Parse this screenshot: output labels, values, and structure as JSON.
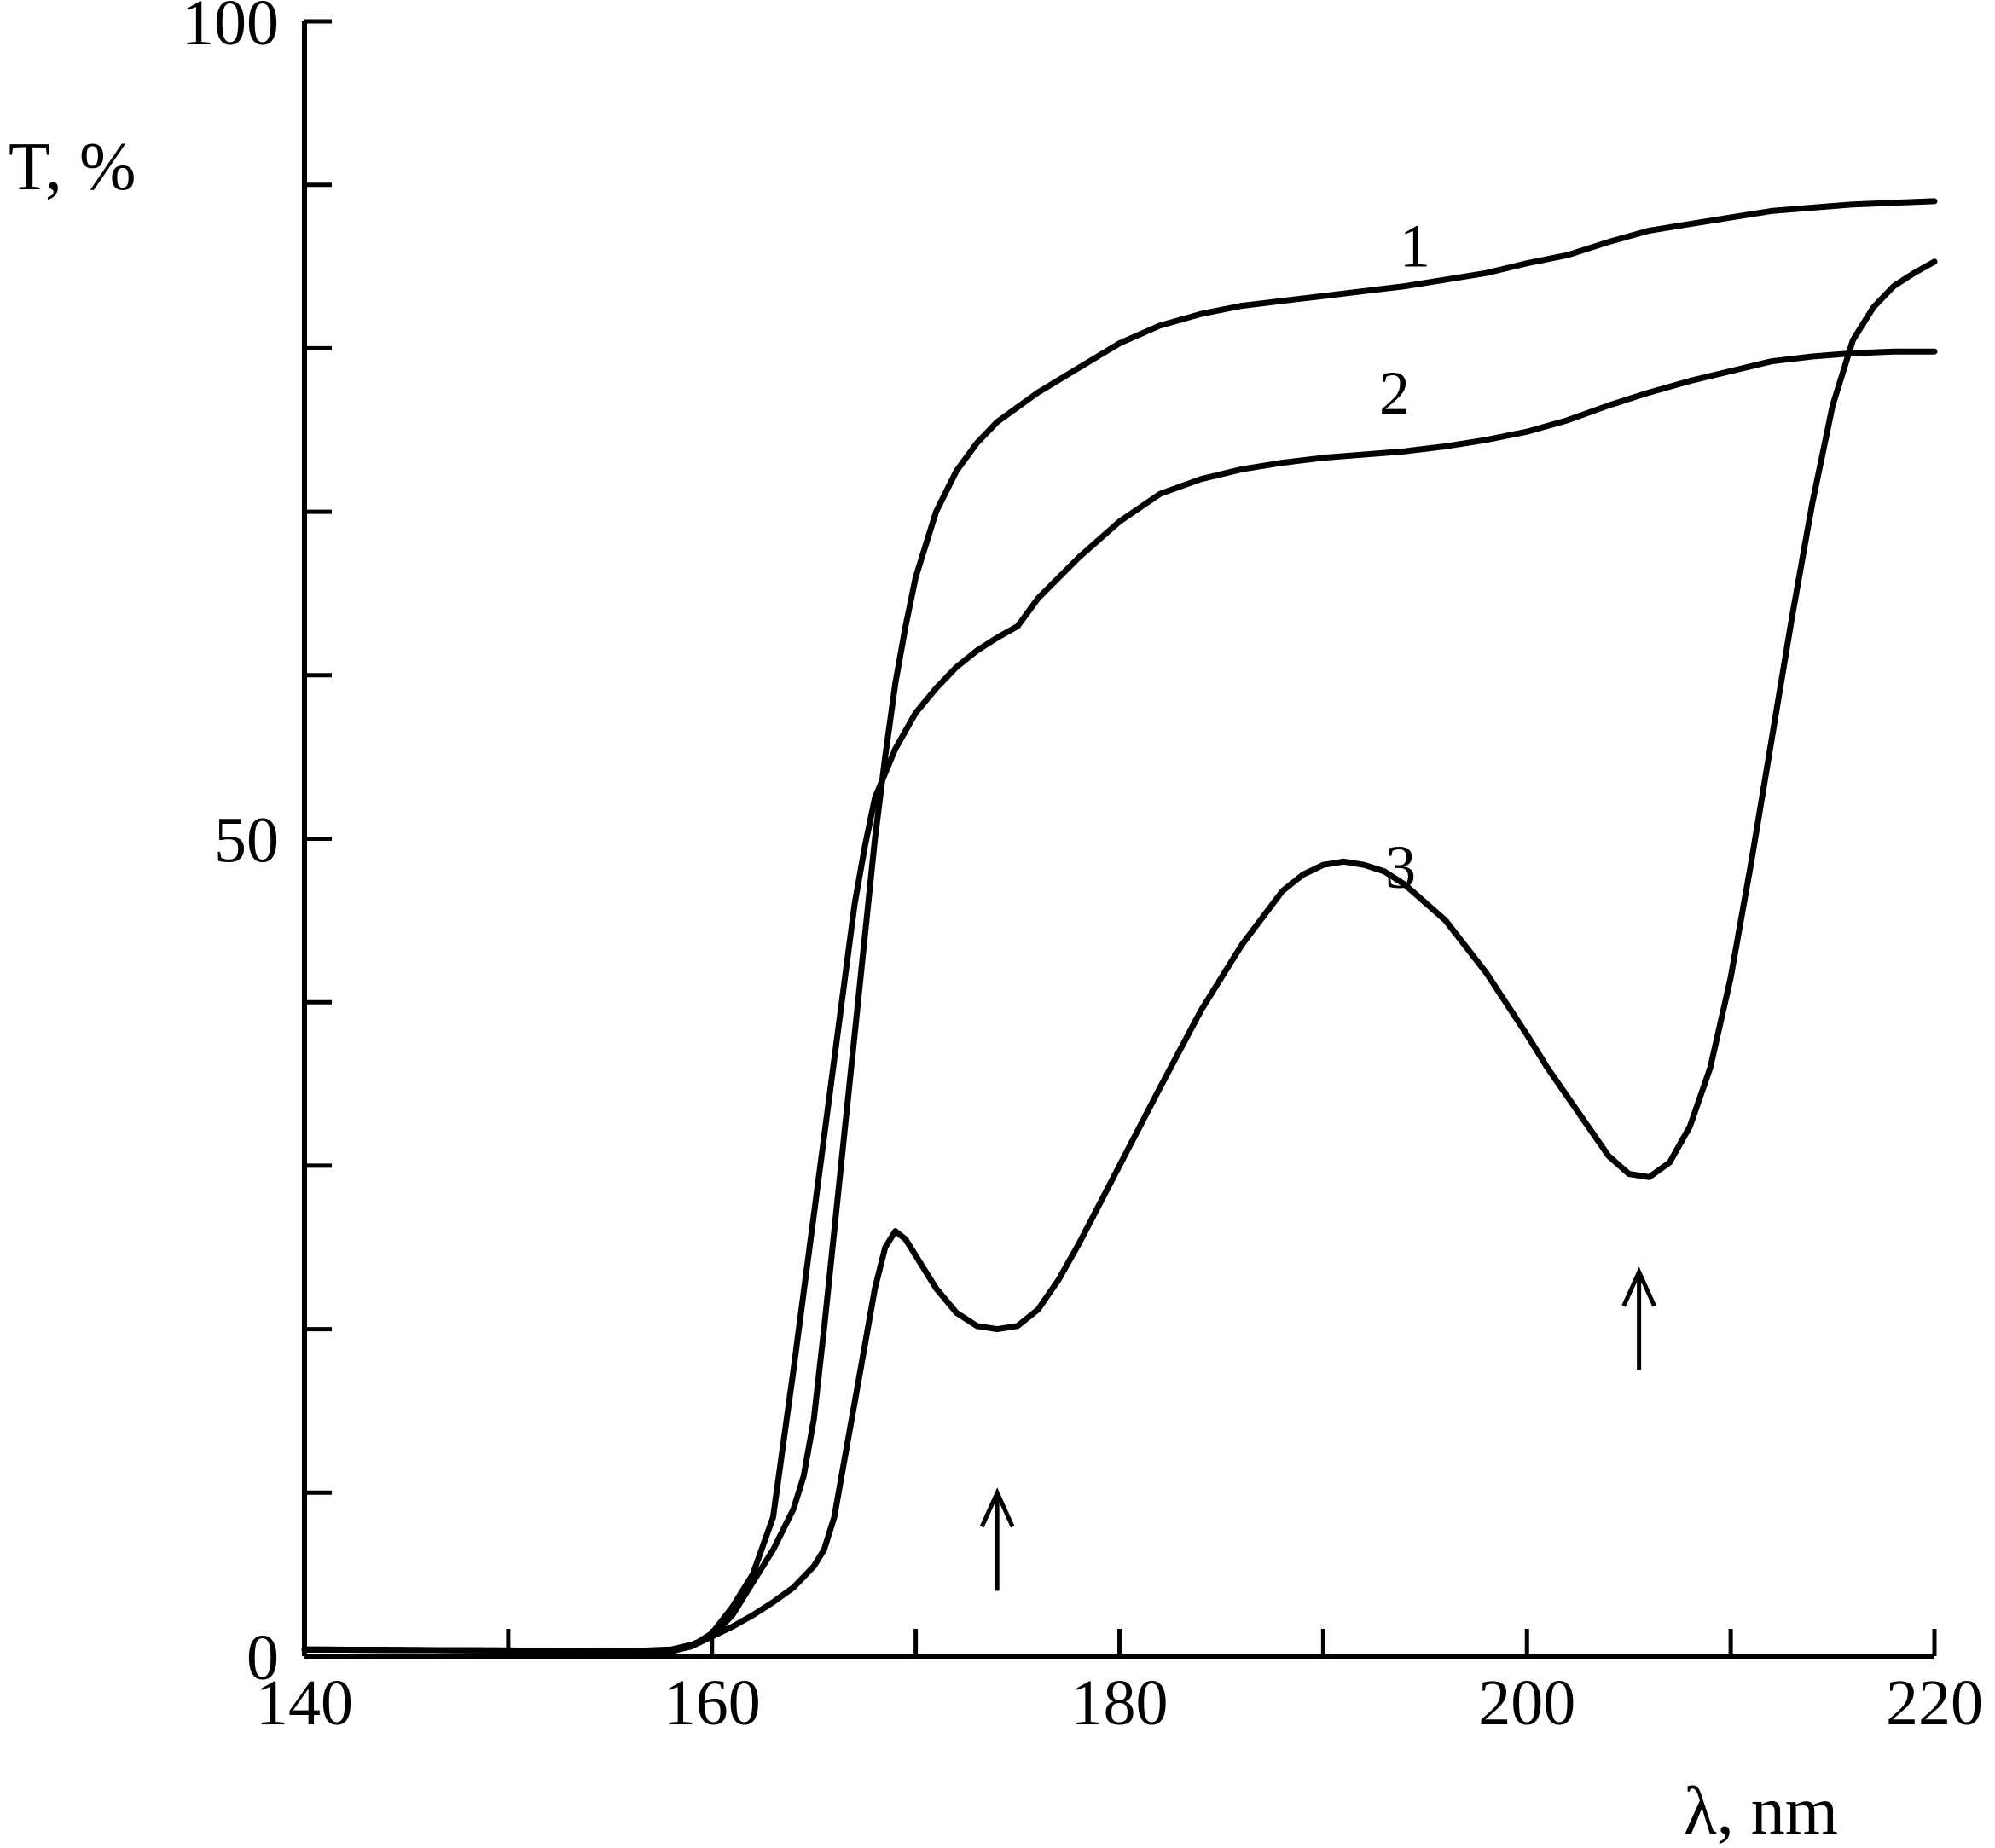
{
  "chart_data": {
    "type": "line",
    "xlabel": "λ, nm",
    "ylabel": "T, %",
    "xlim": [
      140,
      220
    ],
    "ylim": [
      0,
      100
    ],
    "x_ticks_labeled": [
      "140",
      "160",
      "180",
      "200",
      "220"
    ],
    "y_ticks_labeled": [
      "0",
      "50",
      "100"
    ],
    "x_tick_step": 10,
    "y_tick_step": 10,
    "grid": false,
    "legend": "none",
    "series": [
      {
        "name": "1",
        "points": [
          [
            140,
            0.4
          ],
          [
            156,
            0.3
          ],
          [
            158,
            0.3
          ],
          [
            159,
            0.6
          ],
          [
            160,
            1.2
          ],
          [
            161,
            2.5
          ],
          [
            162,
            4.5
          ],
          [
            163,
            6.5
          ],
          [
            164,
            9.0
          ],
          [
            164.5,
            11.0
          ],
          [
            165,
            14.5
          ],
          [
            165.5,
            20.0
          ],
          [
            166,
            26.0
          ],
          [
            166.5,
            32.0
          ],
          [
            167,
            38.0
          ],
          [
            167.5,
            44.0
          ],
          [
            168,
            50.0
          ],
          [
            168.5,
            55.0
          ],
          [
            169,
            59.5
          ],
          [
            169.5,
            63.0
          ],
          [
            170,
            66.0
          ],
          [
            171,
            70.0
          ],
          [
            172,
            72.5
          ],
          [
            173,
            74.2
          ],
          [
            174,
            75.5
          ],
          [
            176,
            77.3
          ],
          [
            178,
            78.8
          ],
          [
            180,
            80.3
          ],
          [
            182,
            81.4
          ],
          [
            184,
            82.1
          ],
          [
            186,
            82.6
          ],
          [
            188,
            82.9
          ],
          [
            190,
            83.2
          ],
          [
            192,
            83.5
          ],
          [
            194,
            83.8
          ],
          [
            196,
            84.2
          ],
          [
            198,
            84.6
          ],
          [
            200,
            85.2
          ],
          [
            202,
            85.7
          ],
          [
            204,
            86.5
          ],
          [
            206,
            87.2
          ],
          [
            208,
            87.6
          ],
          [
            210,
            88.0
          ],
          [
            212,
            88.4
          ],
          [
            214,
            88.6
          ],
          [
            216,
            88.8
          ],
          [
            218,
            88.9
          ],
          [
            220,
            89.0
          ]
        ]
      },
      {
        "name": "2",
        "points": [
          [
            140,
            0.4
          ],
          [
            156,
            0.3
          ],
          [
            158,
            0.4
          ],
          [
            159,
            0.7
          ],
          [
            160,
            1.2
          ],
          [
            161,
            1.8
          ],
          [
            162,
            2.5
          ],
          [
            163,
            3.3
          ],
          [
            164,
            4.2
          ],
          [
            165,
            5.5
          ],
          [
            165.5,
            6.5
          ],
          [
            166,
            8.5
          ],
          [
            166.5,
            12.0
          ],
          [
            167,
            15.5
          ],
          [
            167.5,
            19.0
          ],
          [
            168,
            22.5
          ],
          [
            168.5,
            25.0
          ],
          [
            169,
            26.0
          ],
          [
            169.5,
            25.5
          ],
          [
            170,
            24.5
          ],
          [
            171,
            22.5
          ],
          [
            172,
            21.0
          ],
          [
            173,
            20.2
          ],
          [
            174,
            20.0
          ],
          [
            175,
            20.2
          ],
          [
            176,
            21.2
          ],
          [
            177,
            23.0
          ],
          [
            178,
            25.2
          ],
          [
            180,
            30.0
          ],
          [
            182,
            34.8
          ],
          [
            184,
            39.5
          ],
          [
            186,
            43.5
          ],
          [
            188,
            46.8
          ],
          [
            189,
            47.8
          ],
          [
            190,
            48.4
          ],
          [
            191,
            48.6
          ],
          [
            192,
            48.4
          ],
          [
            193,
            48.0
          ],
          [
            194,
            47.2
          ],
          [
            196,
            45.0
          ],
          [
            198,
            41.8
          ],
          [
            200,
            38.0
          ],
          [
            201,
            36.0
          ],
          [
            202,
            34.2
          ],
          [
            203,
            32.4
          ],
          [
            204,
            30.6
          ],
          [
            205,
            29.5
          ],
          [
            206,
            29.3
          ],
          [
            207,
            30.2
          ],
          [
            208,
            32.4
          ],
          [
            209,
            36.0
          ],
          [
            210,
            41.5
          ],
          [
            211,
            48.5
          ],
          [
            212,
            56.0
          ],
          [
            213,
            63.5
          ],
          [
            214,
            70.5
          ],
          [
            215,
            76.5
          ],
          [
            216,
            80.5
          ],
          [
            217,
            82.5
          ],
          [
            218,
            83.8
          ],
          [
            219,
            84.6
          ],
          [
            220,
            85.3
          ]
        ]
      },
      {
        "name": "3",
        "points": [
          [
            140,
            0.4
          ],
          [
            156,
            0.3
          ],
          [
            158,
            0.3
          ],
          [
            159,
            0.6
          ],
          [
            160,
            1.4
          ],
          [
            161,
            3.0
          ],
          [
            162,
            5.0
          ],
          [
            163,
            8.5
          ],
          [
            164,
            17.5
          ],
          [
            165,
            27.0
          ],
          [
            166,
            36.5
          ],
          [
            167,
            46.0
          ],
          [
            167.5,
            49.5
          ],
          [
            168,
            52.5
          ],
          [
            169,
            55.5
          ],
          [
            170,
            57.7
          ],
          [
            171,
            59.2
          ],
          [
            172,
            60.5
          ],
          [
            173,
            61.5
          ],
          [
            174,
            62.3
          ],
          [
            175,
            63.0
          ],
          [
            176,
            64.7
          ],
          [
            178,
            67.2
          ],
          [
            180,
            69.4
          ],
          [
            182,
            71.1
          ],
          [
            184,
            72.0
          ],
          [
            186,
            72.6
          ],
          [
            188,
            73.0
          ],
          [
            190,
            73.3
          ],
          [
            192,
            73.5
          ],
          [
            194,
            73.7
          ],
          [
            196,
            74.0
          ],
          [
            198,
            74.4
          ],
          [
            200,
            74.9
          ],
          [
            202,
            75.6
          ],
          [
            204,
            76.5
          ],
          [
            206,
            77.3
          ],
          [
            208,
            78.0
          ],
          [
            210,
            78.6
          ],
          [
            212,
            79.2
          ],
          [
            214,
            79.5
          ],
          [
            216,
            79.7
          ],
          [
            218,
            79.8
          ],
          [
            220,
            79.8
          ]
        ]
      }
    ],
    "annotations": [
      {
        "type": "arrow-up",
        "x": 174,
        "y_tail": 4.0,
        "y_head": 10.0
      },
      {
        "type": "arrow-up",
        "x": 205.5,
        "y_tail": 17.5,
        "y_head": 23.5
      }
    ]
  }
}
